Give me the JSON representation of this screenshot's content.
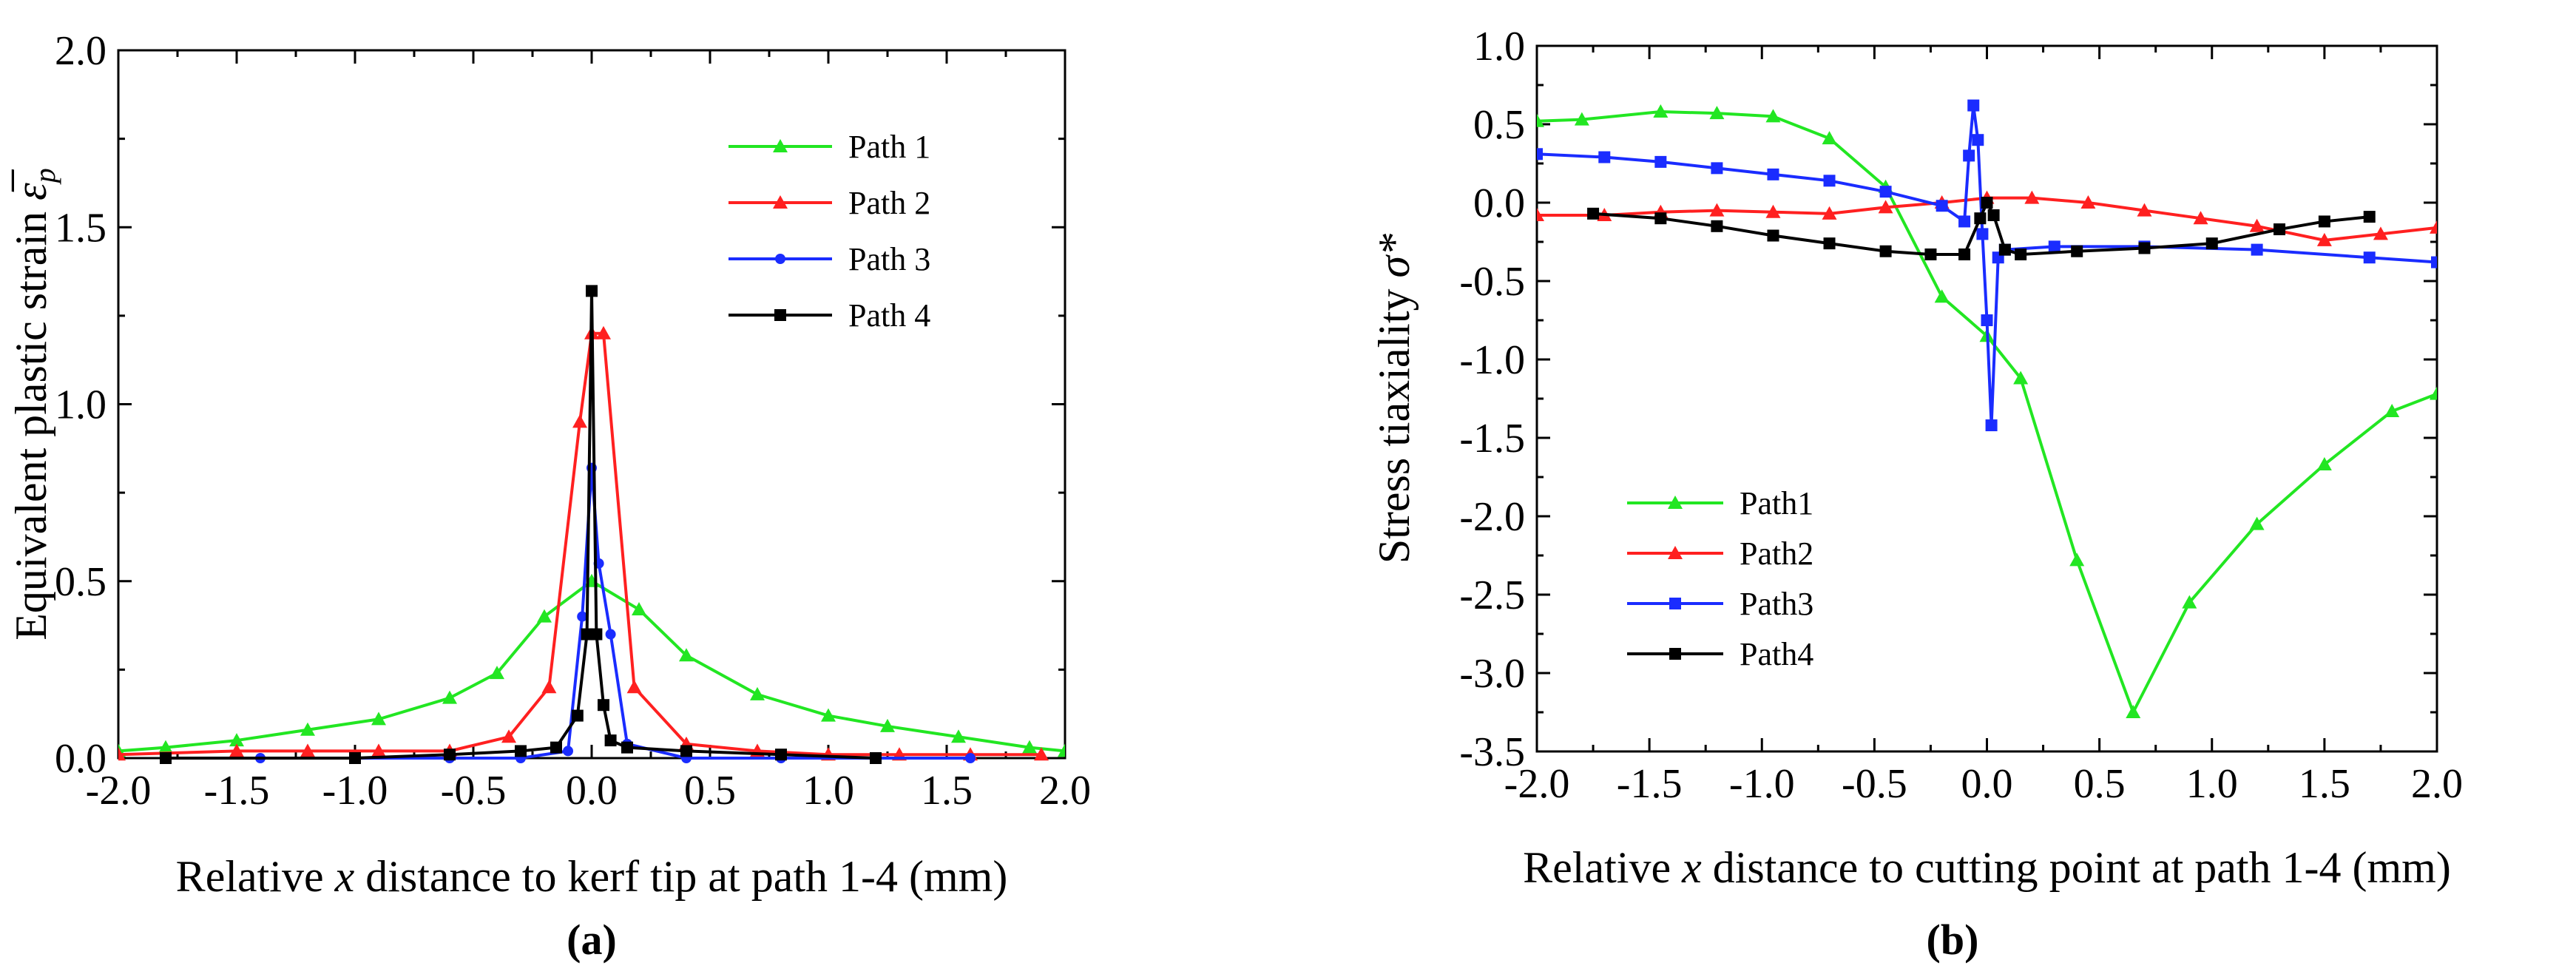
{
  "chart_data": [
    {
      "id": "a",
      "type": "line",
      "panel_label": "(a)",
      "xlabel_parts": [
        "Relative ",
        "x",
        " distance to kerf tip at path 1-4 (mm)"
      ],
      "ylabel": "Equivalent plastic strain",
      "ylabel_symbol": "ε̅",
      "ylabel_subscript": "p",
      "xlim": [
        -2.0,
        2.0
      ],
      "ylim": [
        0.0,
        2.0
      ],
      "xticks": [
        -2.0,
        -1.5,
        -1.0,
        -0.5,
        0.0,
        0.5,
        1.0,
        1.5,
        2.0
      ],
      "yticks": [
        0.0,
        0.5,
        1.0,
        1.5,
        2.0
      ],
      "xtick_labels": [
        "-2.0",
        "-1.5",
        "-1.0",
        "-0.5",
        "0.0",
        "0.5",
        "1.0",
        "1.5",
        "2.0"
      ],
      "ytick_labels": [
        "0.0",
        "0.5",
        "1.0",
        "1.5",
        "2.0"
      ],
      "legend_position": "top-right",
      "series": [
        {
          "name": "Path 1",
          "color": "#22e622",
          "marker": "triangle",
          "x": [
            -2.0,
            -1.8,
            -1.5,
            -1.2,
            -0.9,
            -0.6,
            -0.4,
            -0.2,
            0.0,
            0.2,
            0.4,
            0.7,
            1.0,
            1.25,
            1.55,
            1.85,
            2.0
          ],
          "y": [
            0.02,
            0.03,
            0.05,
            0.08,
            0.11,
            0.17,
            0.24,
            0.4,
            0.5,
            0.42,
            0.29,
            0.18,
            0.12,
            0.09,
            0.06,
            0.03,
            0.02
          ]
        },
        {
          "name": "Path 2",
          "color": "#ff2020",
          "marker": "triangle",
          "x": [
            -2.0,
            -1.5,
            -1.2,
            -0.9,
            -0.6,
            -0.35,
            -0.18,
            -0.05,
            0.0,
            0.05,
            0.18,
            0.4,
            0.7,
            1.0,
            1.3,
            1.6,
            1.9
          ],
          "y": [
            0.01,
            0.02,
            0.02,
            0.02,
            0.02,
            0.06,
            0.2,
            0.95,
            1.2,
            1.2,
            0.2,
            0.04,
            0.02,
            0.01,
            0.01,
            0.01,
            0.01
          ]
        },
        {
          "name": "Path 3",
          "color": "#1a2cff",
          "marker": "circle",
          "x": [
            -1.8,
            -1.4,
            -1.0,
            -0.6,
            -0.3,
            -0.1,
            -0.04,
            0.0,
            0.03,
            0.08,
            0.15,
            0.4,
            0.8,
            1.2,
            1.6
          ],
          "y": [
            0.0,
            0.0,
            0.0,
            0.0,
            0.0,
            0.02,
            0.4,
            0.82,
            0.55,
            0.35,
            0.04,
            0.0,
            0.0,
            0.0,
            0.0
          ]
        },
        {
          "name": "Path 4",
          "color": "#000000",
          "marker": "square",
          "x": [
            -1.8,
            -1.0,
            -0.6,
            -0.3,
            -0.15,
            -0.06,
            -0.02,
            0.0,
            0.02,
            0.05,
            0.08,
            0.15,
            0.4,
            0.8,
            1.2
          ],
          "y": [
            0.0,
            0.0,
            0.01,
            0.02,
            0.03,
            0.12,
            0.35,
            1.32,
            0.35,
            0.15,
            0.05,
            0.03,
            0.02,
            0.01,
            0.0
          ]
        }
      ]
    },
    {
      "id": "b",
      "type": "line",
      "panel_label": "(b)",
      "xlabel_parts": [
        "Relative ",
        "x",
        " distance to cutting point at path 1-4 (mm)"
      ],
      "ylabel": "Stress tiaxiality",
      "ylabel_symbol": "σ*",
      "xlim": [
        -2.0,
        2.0
      ],
      "ylim": [
        -3.5,
        1.0
      ],
      "xticks": [
        -2.0,
        -1.5,
        -1.0,
        -0.5,
        0.0,
        0.5,
        1.0,
        1.5,
        2.0
      ],
      "yticks": [
        -3.5,
        -3.0,
        -2.5,
        -2.0,
        -1.5,
        -1.0,
        -0.5,
        0.0,
        0.5,
        1.0
      ],
      "xtick_labels": [
        "-2.0",
        "-1.5",
        "-1.0",
        "-0.5",
        "0.0",
        "0.5",
        "1.0",
        "1.5",
        "2.0"
      ],
      "ytick_labels": [
        "-3.5",
        "-3.0",
        "-2.5",
        "-2.0",
        "-1.5",
        "-1.0",
        "-0.5",
        "0.0",
        "0.5",
        "1.0"
      ],
      "legend_position": "bottom-left",
      "series": [
        {
          "name": "Path1",
          "color": "#22e622",
          "marker": "triangle",
          "x": [
            -2.0,
            -1.8,
            -1.45,
            -1.2,
            -0.95,
            -0.7,
            -0.45,
            -0.2,
            0.0,
            0.15,
            0.4,
            0.65,
            0.9,
            1.2,
            1.5,
            1.8,
            2.0
          ],
          "y": [
            0.52,
            0.53,
            0.58,
            0.57,
            0.55,
            0.41,
            0.1,
            -0.6,
            -0.85,
            -1.12,
            -2.28,
            -3.25,
            -2.55,
            -2.05,
            -1.67,
            -1.33,
            -1.22
          ]
        },
        {
          "name": "Path2",
          "color": "#ff2020",
          "marker": "triangle",
          "x": [
            -2.0,
            -1.7,
            -1.45,
            -1.2,
            -0.95,
            -0.7,
            -0.45,
            -0.2,
            0.0,
            0.2,
            0.45,
            0.7,
            0.95,
            1.2,
            1.5,
            1.75,
            2.0
          ],
          "y": [
            -0.08,
            -0.08,
            -0.06,
            -0.05,
            -0.06,
            -0.07,
            -0.03,
            0.0,
            0.03,
            0.03,
            0.0,
            -0.05,
            -0.1,
            -0.15,
            -0.24,
            -0.2,
            -0.16
          ]
        },
        {
          "name": "Path3",
          "color": "#1a2cff",
          "marker": "square",
          "x": [
            -2.0,
            -1.7,
            -1.45,
            -1.2,
            -0.95,
            -0.7,
            -0.45,
            -0.2,
            -0.1,
            -0.08,
            -0.06,
            -0.04,
            -0.02,
            0.0,
            0.02,
            0.05,
            0.08,
            0.3,
            0.7,
            1.2,
            1.7,
            2.0
          ],
          "y": [
            0.31,
            0.29,
            0.26,
            0.22,
            0.18,
            0.14,
            0.07,
            -0.02,
            -0.12,
            0.3,
            0.62,
            0.4,
            -0.2,
            -0.75,
            -1.42,
            -0.35,
            -0.3,
            -0.28,
            -0.28,
            -0.3,
            -0.35,
            -0.38
          ]
        },
        {
          "name": "Path4",
          "color": "#000000",
          "marker": "square",
          "x": [
            -1.75,
            -1.45,
            -1.2,
            -0.95,
            -0.7,
            -0.45,
            -0.25,
            -0.1,
            -0.03,
            0.0,
            0.03,
            0.08,
            0.15,
            0.4,
            0.7,
            1.0,
            1.3,
            1.5,
            1.7
          ],
          "y": [
            -0.07,
            -0.1,
            -0.15,
            -0.21,
            -0.26,
            -0.31,
            -0.33,
            -0.33,
            -0.1,
            0.0,
            -0.08,
            -0.3,
            -0.33,
            -0.31,
            -0.29,
            -0.26,
            -0.17,
            -0.12,
            -0.09
          ]
        }
      ]
    }
  ]
}
